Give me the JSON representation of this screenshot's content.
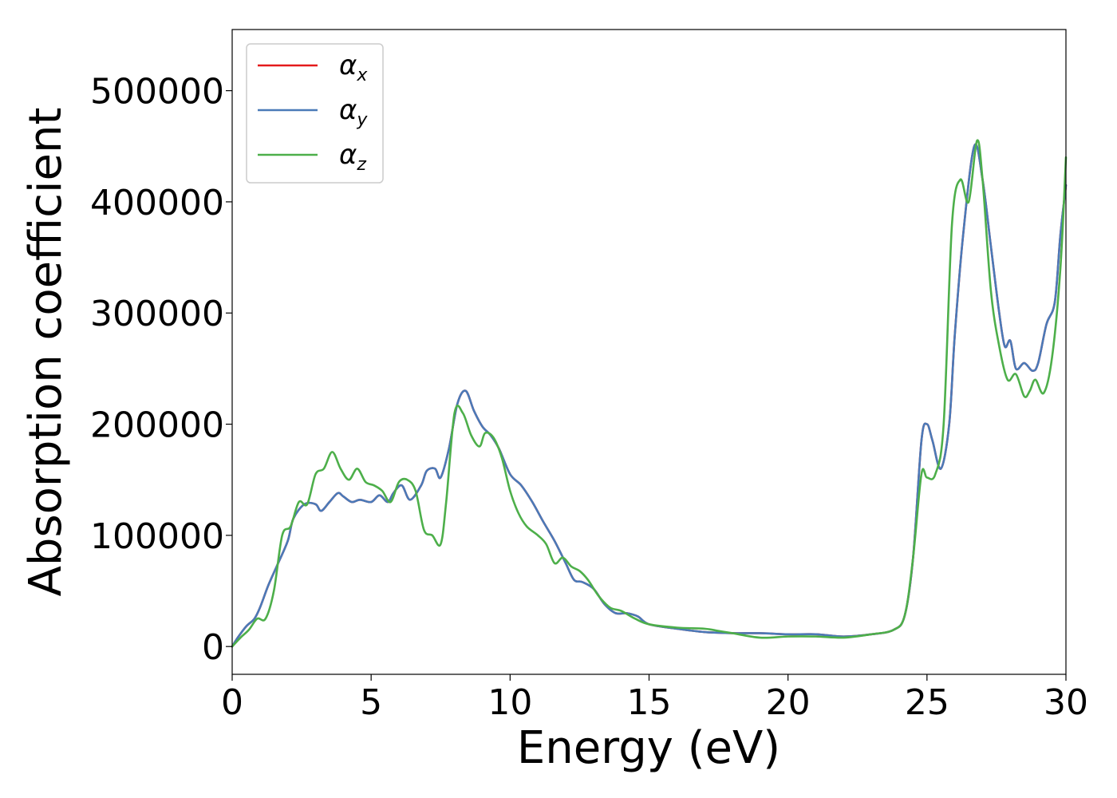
{
  "chart_data": {
    "type": "line",
    "title": "",
    "xlabel": "Energy (eV)",
    "ylabel": "Absorption coefficient",
    "xlim": [
      0,
      30
    ],
    "ylim": [
      -25000,
      555000
    ],
    "xticks": [
      0,
      5,
      10,
      15,
      20,
      25,
      30
    ],
    "yticks": [
      0,
      100000,
      200000,
      300000,
      400000,
      500000
    ],
    "xtick_labels": [
      "0",
      "5",
      "10",
      "15",
      "20",
      "25",
      "30"
    ],
    "ytick_labels": [
      "0",
      "100000",
      "200000",
      "300000",
      "400000",
      "500000"
    ],
    "grid": false,
    "legend_position": "top-left",
    "series": [
      {
        "name": "α_x",
        "label_main": "α",
        "label_sub": "x",
        "color": "#e41a1c",
        "x": [
          0,
          0.2,
          0.5,
          0.8,
          1.0,
          1.3,
          1.6,
          2.0,
          2.2,
          2.6,
          3.0,
          3.2,
          3.5,
          3.8,
          4.0,
          4.3,
          4.6,
          5.0,
          5.3,
          5.6,
          5.8,
          6.1,
          6.4,
          6.8,
          7.0,
          7.3,
          7.5,
          7.8,
          8.1,
          8.4,
          8.7,
          9.0,
          9.3,
          9.6,
          10.0,
          10.4,
          10.8,
          11.2,
          11.6,
          12.0,
          12.3,
          12.6,
          13.0,
          13.4,
          13.8,
          14.2,
          14.6,
          15.0,
          16.0,
          17.0,
          18.0,
          19.0,
          20.0,
          21.0,
          22.0,
          23.0,
          23.8,
          24.2,
          24.5,
          24.8,
          25.0,
          25.2,
          25.5,
          25.8,
          26.0,
          26.3,
          26.7,
          27.0,
          27.3,
          27.6,
          27.8,
          28.0,
          28.2,
          28.5,
          28.8,
          29.0,
          29.3,
          29.6,
          29.8,
          30.0
        ],
        "y": [
          0,
          8000,
          18000,
          25000,
          35000,
          55000,
          72000,
          95000,
          115000,
          128000,
          128000,
          122000,
          130000,
          138000,
          135000,
          130000,
          132000,
          130000,
          136000,
          130000,
          138000,
          145000,
          132000,
          145000,
          158000,
          160000,
          152000,
          178000,
          218000,
          230000,
          212000,
          198000,
          190000,
          178000,
          155000,
          145000,
          130000,
          112000,
          95000,
          75000,
          60000,
          58000,
          52000,
          38000,
          30000,
          30000,
          27000,
          20000,
          16000,
          13000,
          12000,
          12000,
          11000,
          11000,
          9000,
          11000,
          15000,
          28000,
          80000,
          185000,
          200000,
          185000,
          160000,
          200000,
          280000,
          370000,
          450000,
          420000,
          360000,
          300000,
          270000,
          275000,
          250000,
          255000,
          248000,
          255000,
          290000,
          310000,
          370000,
          415000
        ]
      },
      {
        "name": "α_y",
        "label_main": "α",
        "label_sub": "y",
        "color": "#4a7ab8",
        "x": [
          0,
          0.2,
          0.5,
          0.8,
          1.0,
          1.3,
          1.6,
          2.0,
          2.2,
          2.6,
          3.0,
          3.2,
          3.5,
          3.8,
          4.0,
          4.3,
          4.6,
          5.0,
          5.3,
          5.6,
          5.8,
          6.1,
          6.4,
          6.8,
          7.0,
          7.3,
          7.5,
          7.8,
          8.1,
          8.4,
          8.7,
          9.0,
          9.3,
          9.6,
          10.0,
          10.4,
          10.8,
          11.2,
          11.6,
          12.0,
          12.3,
          12.6,
          13.0,
          13.4,
          13.8,
          14.2,
          14.6,
          15.0,
          16.0,
          17.0,
          18.0,
          19.0,
          20.0,
          21.0,
          22.0,
          23.0,
          23.8,
          24.2,
          24.5,
          24.8,
          25.0,
          25.2,
          25.5,
          25.8,
          26.0,
          26.3,
          26.7,
          27.0,
          27.3,
          27.6,
          27.8,
          28.0,
          28.2,
          28.5,
          28.8,
          29.0,
          29.3,
          29.6,
          29.8,
          30.0
        ],
        "y": [
          0,
          8000,
          18000,
          25000,
          35000,
          55000,
          72000,
          95000,
          115000,
          128000,
          128000,
          122000,
          130000,
          138000,
          135000,
          130000,
          132000,
          130000,
          136000,
          130000,
          138000,
          145000,
          132000,
          145000,
          158000,
          160000,
          152000,
          178000,
          218000,
          230000,
          212000,
          198000,
          190000,
          178000,
          155000,
          145000,
          130000,
          112000,
          95000,
          75000,
          60000,
          58000,
          52000,
          38000,
          30000,
          30000,
          27000,
          20000,
          16000,
          13000,
          12000,
          12000,
          11000,
          11000,
          9000,
          11000,
          15000,
          28000,
          80000,
          185000,
          200000,
          185000,
          160000,
          200000,
          280000,
          370000,
          450000,
          420000,
          360000,
          300000,
          270000,
          275000,
          250000,
          255000,
          248000,
          255000,
          290000,
          310000,
          370000,
          415000
        ]
      },
      {
        "name": "α_z",
        "label_main": "α",
        "label_sub": "z",
        "color": "#4daf4a",
        "x": [
          0,
          0.3,
          0.6,
          0.9,
          1.2,
          1.5,
          1.8,
          2.1,
          2.4,
          2.7,
          3.0,
          3.3,
          3.6,
          3.9,
          4.2,
          4.5,
          4.8,
          5.1,
          5.4,
          5.7,
          6.0,
          6.3,
          6.6,
          6.9,
          7.2,
          7.5,
          7.7,
          8.0,
          8.3,
          8.6,
          8.9,
          9.1,
          9.4,
          9.7,
          10.0,
          10.3,
          10.6,
          11.0,
          11.3,
          11.6,
          11.9,
          12.2,
          12.5,
          12.8,
          13.2,
          13.6,
          14.0,
          14.5,
          15.0,
          16.0,
          17.0,
          17.5,
          18.0,
          19.0,
          20.0,
          21.0,
          22.0,
          23.0,
          23.8,
          24.2,
          24.5,
          24.8,
          25.0,
          25.3,
          25.6,
          25.9,
          26.2,
          26.5,
          26.8,
          27.0,
          27.3,
          27.6,
          27.9,
          28.2,
          28.5,
          28.7,
          28.9,
          29.2,
          29.5,
          29.8,
          30.0
        ],
        "y": [
          0,
          8000,
          15000,
          25000,
          25000,
          50000,
          100000,
          108000,
          130000,
          128000,
          155000,
          160000,
          175000,
          160000,
          150000,
          160000,
          148000,
          145000,
          140000,
          130000,
          148000,
          150000,
          140000,
          105000,
          100000,
          92000,
          130000,
          210000,
          210000,
          190000,
          180000,
          192000,
          188000,
          170000,
          140000,
          120000,
          108000,
          100000,
          92000,
          75000,
          80000,
          72000,
          68000,
          60000,
          45000,
          35000,
          32000,
          25000,
          20000,
          17000,
          16000,
          14000,
          12000,
          8000,
          9000,
          9000,
          8000,
          11000,
          15000,
          28000,
          80000,
          155000,
          152000,
          155000,
          200000,
          380000,
          420000,
          400000,
          455000,
          420000,
          320000,
          270000,
          240000,
          245000,
          225000,
          230000,
          240000,
          228000,
          260000,
          340000,
          440000
        ]
      }
    ]
  }
}
